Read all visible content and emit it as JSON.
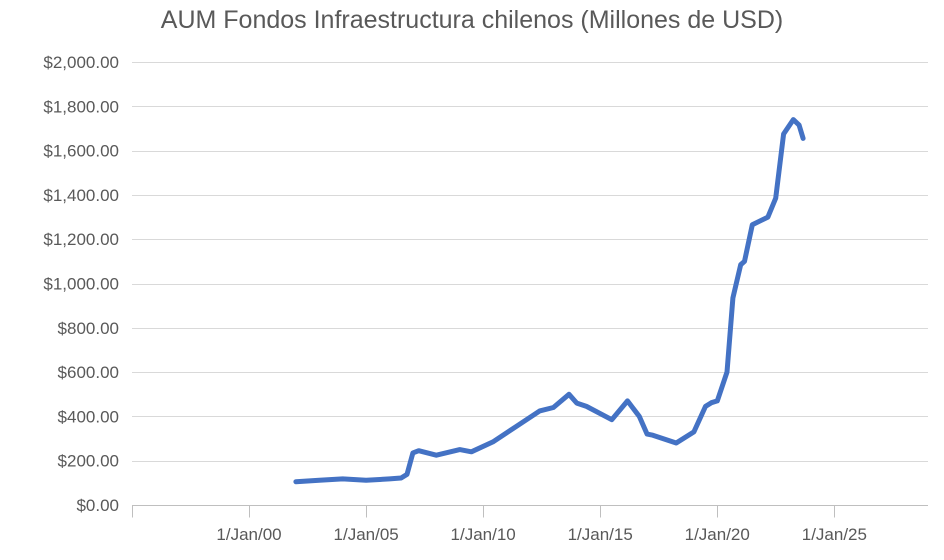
{
  "chart_data": {
    "type": "line",
    "title": "AUM Fondos Infraestructura chilenos (Millones de USD)",
    "xlabel": "",
    "ylabel": "",
    "xlim": [
      "1995-01-01",
      "2029-01-01"
    ],
    "ylim": [
      0,
      2000
    ],
    "grid": "horizontal",
    "legend": "none",
    "line_color": "#4472C4",
    "y_ticks": [
      {
        "value": 0,
        "label": "$0.00"
      },
      {
        "value": 200,
        "label": "$200.00"
      },
      {
        "value": 400,
        "label": "$400.00"
      },
      {
        "value": 600,
        "label": "$600.00"
      },
      {
        "value": 800,
        "label": "$800.00"
      },
      {
        "value": 1000,
        "label": "$1,000.00"
      },
      {
        "value": 1200,
        "label": "$1,200.00"
      },
      {
        "value": 1400,
        "label": "$1,400.00"
      },
      {
        "value": 1600,
        "label": "$1,600.00"
      },
      {
        "value": 1800,
        "label": "$1,800.00"
      },
      {
        "value": 2000,
        "label": "$2,000.00"
      }
    ],
    "x_ticks": [
      {
        "value": "2000-01-01",
        "label": "1/Jan/00"
      },
      {
        "value": "2005-01-01",
        "label": "1/Jan/05"
      },
      {
        "value": "2010-01-01",
        "label": "1/Jan/10"
      },
      {
        "value": "2015-01-01",
        "label": "1/Jan/15"
      },
      {
        "value": "2020-01-01",
        "label": "1/Jan/20"
      },
      {
        "value": "2025-01-01",
        "label": "1/Jan/25"
      }
    ],
    "x_boundaries": [
      "1995-01-01",
      "2000-01-01",
      "2005-01-01",
      "2010-01-01",
      "2015-01-01",
      "2020-01-01",
      "2025-01-01",
      "2030-01-01"
    ],
    "series": [
      {
        "points": [
          {
            "x": "2002-01-01",
            "y": 105
          },
          {
            "x": "2003-01-01",
            "y": 112
          },
          {
            "x": "2004-01-01",
            "y": 118
          },
          {
            "x": "2005-01-01",
            "y": 112
          },
          {
            "x": "2006-01-01",
            "y": 118
          },
          {
            "x": "2006-07-01",
            "y": 122
          },
          {
            "x": "2006-10-01",
            "y": 138
          },
          {
            "x": "2007-01-01",
            "y": 235
          },
          {
            "x": "2007-04-01",
            "y": 245
          },
          {
            "x": "2008-01-01",
            "y": 225
          },
          {
            "x": "2009-01-01",
            "y": 250
          },
          {
            "x": "2009-07-01",
            "y": 240
          },
          {
            "x": "2010-06-01",
            "y": 285
          },
          {
            "x": "2011-06-01",
            "y": 355
          },
          {
            "x": "2012-06-01",
            "y": 425
          },
          {
            "x": "2013-01-01",
            "y": 440
          },
          {
            "x": "2013-09-01",
            "y": 500
          },
          {
            "x": "2014-01-01",
            "y": 460
          },
          {
            "x": "2014-06-01",
            "y": 445
          },
          {
            "x": "2015-07-01",
            "y": 385
          },
          {
            "x": "2016-03-01",
            "y": 470
          },
          {
            "x": "2016-09-01",
            "y": 400
          },
          {
            "x": "2017-01-01",
            "y": 320
          },
          {
            "x": "2017-04-01",
            "y": 315
          },
          {
            "x": "2018-04-01",
            "y": 280
          },
          {
            "x": "2019-01-01",
            "y": 330
          },
          {
            "x": "2019-07-01",
            "y": 445
          },
          {
            "x": "2019-10-01",
            "y": 462
          },
          {
            "x": "2020-01-01",
            "y": 470
          },
          {
            "x": "2020-06-01",
            "y": 600
          },
          {
            "x": "2020-09-01",
            "y": 935
          },
          {
            "x": "2021-01-01",
            "y": 1085
          },
          {
            "x": "2021-03-01",
            "y": 1100
          },
          {
            "x": "2021-07-01",
            "y": 1265
          },
          {
            "x": "2022-03-01",
            "y": 1300
          },
          {
            "x": "2022-07-01",
            "y": 1385
          },
          {
            "x": "2022-11-01",
            "y": 1675
          },
          {
            "x": "2023-04-01",
            "y": 1740
          },
          {
            "x": "2023-07-01",
            "y": 1715
          },
          {
            "x": "2023-09-01",
            "y": 1655
          }
        ]
      }
    ]
  }
}
